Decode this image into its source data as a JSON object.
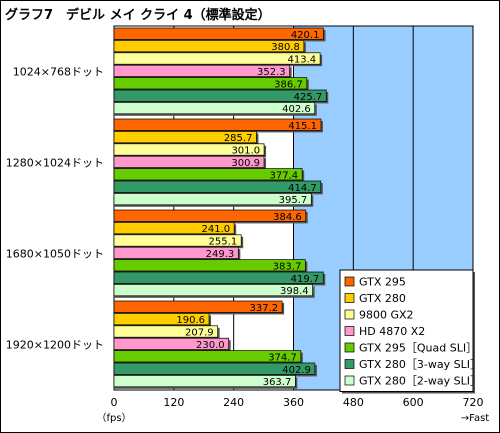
{
  "title": "グラフ7　デビル メイ クライ 4（標準設定）",
  "chart_data": {
    "type": "bar",
    "orientation": "horizontal",
    "title": "グラフ7　デビル メイ クライ 4（標準設定）",
    "categories": [
      "1024×768ドット",
      "1280×1024ドット",
      "1680×1050ドット",
      "1920×1200ドット"
    ],
    "series": [
      {
        "name": "GTX 295",
        "color": "#ff6600",
        "values": [
          420.1,
          415.1,
          384.6,
          337.2
        ]
      },
      {
        "name": "GTX 280",
        "color": "#ffcc00",
        "values": [
          380.8,
          285.7,
          241.0,
          190.6
        ]
      },
      {
        "name": "9800 GX2",
        "color": "#ffff99",
        "values": [
          413.4,
          301.0,
          255.1,
          207.9
        ]
      },
      {
        "name": "HD 4870 X2",
        "color": "#ff99cc",
        "values": [
          352.3,
          300.9,
          249.3,
          230.0
        ]
      },
      {
        "name": "GTX 295［Quad SLI］",
        "color": "#66cc00",
        "values": [
          386.7,
          377.4,
          383.7,
          374.7
        ]
      },
      {
        "name": "GTX 280［3-way SLI］",
        "color": "#339966",
        "values": [
          425.7,
          414.7,
          419.7,
          402.9
        ]
      },
      {
        "name": "GTX 280［2-way SLI］",
        "color": "#ccffcc",
        "values": [
          402.6,
          395.7,
          398.4,
          363.7
        ]
      }
    ],
    "xlim": [
      0,
      720
    ],
    "xticks": [
      0,
      120,
      240,
      360,
      480,
      600,
      720
    ],
    "xunit": "（fps）",
    "xnote": "→Fast",
    "grid": true,
    "plot_background": "#99ccff",
    "legend_position": "bottom-right"
  }
}
